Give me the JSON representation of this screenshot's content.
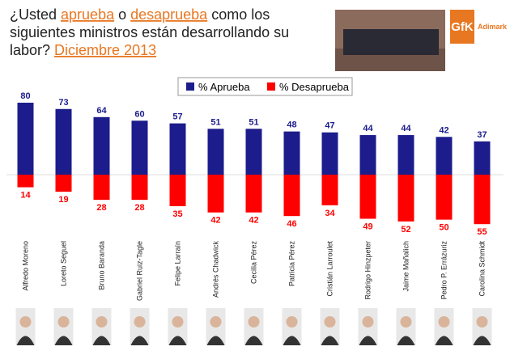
{
  "chart_data": {
    "type": "diverging_bar",
    "title_parts": [
      "¿Usted ",
      "aprueba",
      " o ",
      "desaprueba",
      " como los",
      "siguientes ministros están desarrollando su",
      "labor? ",
      "Diciembre 2013"
    ],
    "logo": {
      "brand": "GfK",
      "name": "Adimark"
    },
    "categories": [
      "Alfredo Moreno",
      "Loreto Seguel",
      "Bruno Baranda",
      "Gabriel Ruiz-Tagle",
      "Felipe Larraín",
      "Andrés Chadwick",
      "Cecilia Pérez",
      "Patricia Pérez",
      "Cristián Larroulet",
      "Rodrigo Hinzpeter",
      "Jaime Mañalich",
      "Pedro P. Errázuriz",
      "Carolina Schmidt"
    ],
    "series": [
      {
        "name": "% Aprueba",
        "color": "#1c1c8c",
        "direction": "up",
        "values": [
          80,
          73,
          64,
          60,
          57,
          51,
          51,
          48,
          47,
          44,
          44,
          42,
          37
        ]
      },
      {
        "name": "% Desaprueba",
        "color": "#ff0000",
        "direction": "down",
        "values": [
          14,
          19,
          28,
          28,
          35,
          42,
          42,
          46,
          34,
          49,
          52,
          50,
          55
        ]
      }
    ]
  }
}
